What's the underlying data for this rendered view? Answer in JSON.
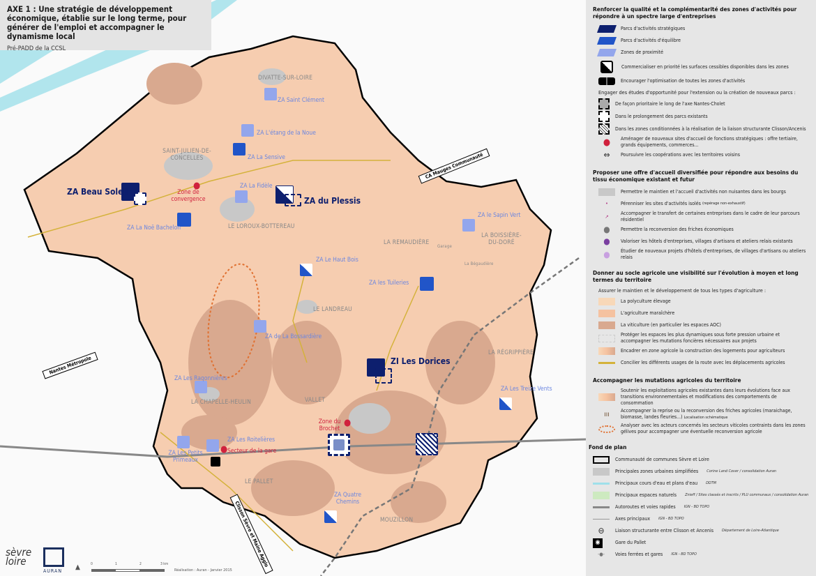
{
  "title": {
    "heading": "AXE 1 : Une stratégie de développement économique, établie sur le long terme, pour générer de l'emploi et accompagner le dynamisme local",
    "subtitle": "Pré-PADD de la CCSL"
  },
  "map": {
    "towns": [
      "DIVATTE-SUR-LOIRE",
      "SAINT-JULIEN-DE-CONCELLES",
      "LE LOROUX-BOTTEREAU",
      "LA REMAUDIÈRE",
      "LA BOISSIÈRE-DU-DORÉ",
      "LE LANDREAU",
      "LA RÉGRIPPIÈRE",
      "LA CHAPELLE-HEULIN",
      "VALLET",
      "LE PALLET",
      "MOUZILLON",
      "Garage",
      "La Bégaudière"
    ],
    "zones": [
      "ZA Saint Clément",
      "ZA L'étang de la Noue",
      "ZA La Sensive",
      "ZA Beau Soleil",
      "ZA La Fidèle",
      "ZA du Plessis",
      "ZA La Noë Bachelon",
      "ZA Le Haut Bois",
      "ZA le Sapin Vert",
      "ZA les Tuileries",
      "ZA de La Bossardière",
      "ZI Les Dorices",
      "ZA Les Raqonnières",
      "ZA Les Treize Vents",
      "ZA Les Roitelières",
      "ZA Les Petits Primeaux",
      "ZA Quatre Chemins"
    ],
    "strategic_sites": [
      "Zone de convergence",
      "Zone du Brochet",
      "Secteur de la gare"
    ],
    "neighbours": [
      "CA Mauges Communauté",
      "Nantes Métropole",
      "Clisson Sèvre et Maine Agglo"
    ],
    "scale": [
      "0",
      "1",
      "2",
      "3 km"
    ],
    "credit": "Réalisation : Auran - Janvier 2015",
    "logos": [
      "sèvre loire",
      "AURAN"
    ],
    "colors": {
      "strategic": "#0d1f6e",
      "balance": "#2155c8",
      "proximity": "#93a6ec",
      "polyculture": "#f8d8b8",
      "maraichage": "#f5c2a0",
      "viticulture": "#d9a98f",
      "boundary": "#000000",
      "urban": "#c8c8c8",
      "water": "#9fe0ea",
      "natural": "#cdeac0"
    }
  },
  "legend": {
    "s1": {
      "title": "Renforcer la qualité et la complémentarité des zones d'activités pour répondre à un spectre large d'entreprises",
      "items": [
        "Parcs d'activités stratégiques",
        "Parcs d'activités d'équilibre",
        "Zones de proximité",
        "Commercialiser en priorité les surfaces cessibles disponibles dans les zones",
        "Encourager l'optimisation de toutes les zones d'activités"
      ],
      "sub": "Engager des études d'opportunité pour l'extension ou la création de nouveaux parcs :",
      "items2": [
        "De façon prioritaire le long de l'axe Nantes-Cholet",
        "Dans le prolongement des parcs existants",
        "Dans les zones conditionnées à la réalisation de la liaison structurante Clisson/Ancenis",
        "Aménager de nouveaux sites d'accueil de fonctions stratégiques : offre tertiaire, grands équipements, commerces...",
        "Poursuivre les coopérations avec les territoires voisins"
      ]
    },
    "s2": {
      "title": "Proposer une offre d'accueil diversifiée pour répondre aux besoins du tissu économique existant et futur",
      "items": [
        "Permettre le maintien et l'accueil d'activités non nuisantes dans les bourgs",
        "Pérenniser les sites d'activités isolés",
        "Accompagner le transfert de certaines entreprises dans le cadre de leur parcours résidentiel",
        "Permettre la reconversion des friches économiques",
        "Valoriser les hôtels d'entreprises, villages d'artisans et ateliers relais existants",
        "Étudier de nouveaux projets d'hôtels d'entreprises, de villages d'artisans ou ateliers relais"
      ],
      "note": "(repérage non-exhaustif)"
    },
    "s3": {
      "title": "Donner au socle agricole une visibilité sur l'évolution à moyen et long termes du territoire",
      "sub": "Assurer le maintien et le développement de tous les types d'agriculture :",
      "items": [
        "La polyculture élevage",
        "L'agriculture maraîchère",
        "La viticulture (en particulier les espaces AOC)",
        "Protéger les espaces les plus dynamiques sous forte pression urbaine et accompagner les mutations foncières nécessaires aux projets",
        "Encadrer en zone agricole la construction des logements pour agriculteurs",
        "Concilier les différents usages de la route avec les déplacements agricoles"
      ]
    },
    "s4": {
      "title": "Accompagner les mutations agricoles du territoire",
      "items": [
        "Soutenir les exploitations agricoles existantes dans leurs évolutions face aux transitions environnementales et modifications des comportements de consommation",
        "Accompagner la reprise ou la reconversion des friches agricoles (maraichage, biomasse, landes fleuries...)",
        "Analyser avec les acteurs concernés les secteurs viticoles contraints dans les zones gélives pour accompagner une éventuelle reconversion agricole"
      ],
      "note": "Localisation schématique"
    },
    "s5": {
      "title": "Fond de plan",
      "items": [
        {
          "label": "Communauté de communes Sèvre et Loire",
          "src": ""
        },
        {
          "label": "Principales zones urbaines simplifiées",
          "src": "Corine Land Cover / consolidation Auran"
        },
        {
          "label": "Principaux cours d'eau et plans d'eau",
          "src": "DDTM"
        },
        {
          "label": "Principaux espaces naturels",
          "src": "Znieff / Sites classés et inscrits / PLU communaux / consolidation Auran"
        },
        {
          "label": "Autoroutes et voies rapides",
          "src": "IGN - BD TOPO"
        },
        {
          "label": "Axes principaux",
          "src": "IGN - BD TOPO"
        },
        {
          "label": "Liaison structurante entre Clisson et Ancenis",
          "src": "Département de Loire-Atlantique"
        },
        {
          "label": "Gare du Pallet",
          "src": ""
        },
        {
          "label": "Voies ferrées et gares",
          "src": "IGN - BD TOPO"
        }
      ]
    }
  }
}
